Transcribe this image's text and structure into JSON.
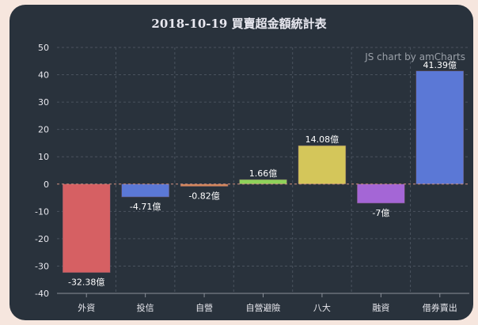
{
  "chart_data": {
    "type": "bar",
    "title": "2018-10-19 買賣超金額統計表",
    "credit": "JS chart by amCharts",
    "categories": [
      "外資",
      "投信",
      "自營",
      "自營避險",
      "八大",
      "融資",
      "借券賣出"
    ],
    "values": [
      -32.38,
      -4.71,
      -0.82,
      1.66,
      14.08,
      -7,
      41.39
    ],
    "labels": [
      "-32.38億",
      "-4.71億",
      "-0.82億",
      "1.66億",
      "14.08億",
      "-7億",
      "41.39億"
    ],
    "colors": [
      "#d66063",
      "#5b78d6",
      "#d4875a",
      "#8fd15a",
      "#d4c65a",
      "#a466d6",
      "#5b78d6"
    ],
    "ylim": [
      -40,
      50
    ],
    "yticks": [
      50,
      40,
      30,
      20,
      10,
      0,
      -10,
      -20,
      -30,
      -40
    ],
    "grid": true,
    "xlabel": "",
    "ylabel": ""
  }
}
